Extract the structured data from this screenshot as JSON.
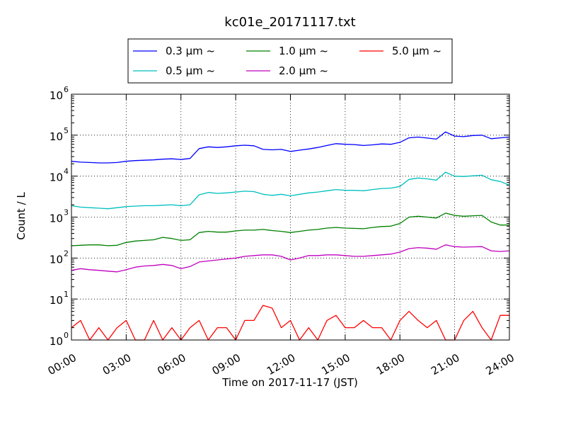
{
  "chart_data": {
    "type": "line",
    "title": "kc01e_20171117.txt",
    "xlabel": "Time on 2017-11-17 (JST)",
    "ylabel": "Count / L",
    "yscale": "log",
    "ylim": [
      1,
      1000000
    ],
    "y_ticks": [
      {
        "base": "10",
        "exp": "0"
      },
      {
        "base": "10",
        "exp": "1"
      },
      {
        "base": "10",
        "exp": "2"
      },
      {
        "base": "10",
        "exp": "3"
      },
      {
        "base": "10",
        "exp": "4"
      },
      {
        "base": "10",
        "exp": "5"
      },
      {
        "base": "10",
        "exp": "6"
      }
    ],
    "x_tick_labels": [
      "00:00",
      "03:00",
      "06:00",
      "09:00",
      "12:00",
      "15:00",
      "18:00",
      "21:00",
      "24:00"
    ],
    "xlim_hours": [
      0,
      24
    ],
    "grid": true,
    "legend_position": "top-center",
    "x_hours": [
      0,
      0.5,
      1,
      1.5,
      2,
      2.5,
      3,
      3.5,
      4,
      4.5,
      5,
      5.5,
      6,
      6.5,
      7,
      7.5,
      8,
      8.5,
      9,
      9.5,
      10,
      10.5,
      11,
      11.5,
      12,
      12.5,
      13,
      13.5,
      14,
      14.5,
      15,
      15.5,
      16,
      16.5,
      17,
      17.5,
      18,
      18.5,
      19,
      19.5,
      20,
      20.5,
      21,
      21.5,
      22,
      22.5,
      23,
      23.5,
      24
    ],
    "series": [
      {
        "name": "0.3 μm ~",
        "color": "#0000ff",
        "values": [
          23000,
          22000,
          21500,
          21000,
          21000,
          21500,
          23000,
          24000,
          24500,
          25000,
          26000,
          26500,
          25500,
          27000,
          47000,
          52000,
          50000,
          52000,
          55000,
          57000,
          55000,
          45000,
          44000,
          45000,
          40000,
          43000,
          46000,
          50000,
          56000,
          62000,
          60000,
          59000,
          56000,
          58000,
          61000,
          60000,
          67000,
          86000,
          90000,
          85000,
          80000,
          120000,
          95000,
          92000,
          98000,
          100000,
          82000,
          86000,
          90000
        ]
      },
      {
        "name": "0.5 μm ~",
        "color": "#00bfbf",
        "values": [
          1900,
          1750,
          1700,
          1650,
          1600,
          1700,
          1800,
          1850,
          1900,
          1900,
          1950,
          2000,
          1900,
          2000,
          3500,
          4000,
          3800,
          3900,
          4100,
          4300,
          4200,
          3600,
          3400,
          3600,
          3300,
          3600,
          3900,
          4100,
          4400,
          4700,
          4500,
          4500,
          4400,
          4700,
          5000,
          5100,
          5600,
          8300,
          9000,
          8600,
          8000,
          12500,
          10000,
          9800,
          10200,
          10500,
          8200,
          7400,
          6000
        ]
      },
      {
        "name": "1.0 μm ~",
        "color": "#008000",
        "values": [
          200,
          205,
          210,
          210,
          200,
          205,
          240,
          260,
          270,
          280,
          320,
          300,
          270,
          280,
          420,
          450,
          430,
          430,
          460,
          480,
          480,
          500,
          470,
          450,
          420,
          450,
          480,
          500,
          540,
          560,
          540,
          530,
          520,
          560,
          590,
          600,
          700,
          1000,
          1050,
          1000,
          950,
          1250,
          1100,
          1050,
          1080,
          1100,
          760,
          640,
          640
        ]
      },
      {
        "name": "2.0 μm ~",
        "color": "#bf00bf",
        "values": [
          50,
          55,
          52,
          50,
          48,
          46,
          52,
          60,
          64,
          66,
          70,
          66,
          55,
          62,
          80,
          85,
          90,
          95,
          100,
          110,
          115,
          120,
          120,
          110,
          90,
          100,
          115,
          115,
          120,
          120,
          115,
          110,
          110,
          115,
          120,
          125,
          140,
          170,
          180,
          175,
          165,
          210,
          190,
          185,
          188,
          190,
          150,
          145,
          150
        ]
      },
      {
        "name": "5.0 μm ~",
        "color": "#ff0000",
        "values": [
          2,
          3,
          1,
          2,
          1,
          2,
          3,
          1,
          1,
          3,
          1,
          2,
          1,
          2,
          3,
          1,
          2,
          2,
          1,
          3,
          3,
          7,
          6,
          2,
          3,
          1,
          2,
          1,
          3,
          4,
          2,
          2,
          3,
          2,
          2,
          1,
          3,
          5,
          3,
          2,
          3,
          1,
          1,
          3,
          5,
          2,
          1,
          4,
          4
        ]
      }
    ]
  }
}
